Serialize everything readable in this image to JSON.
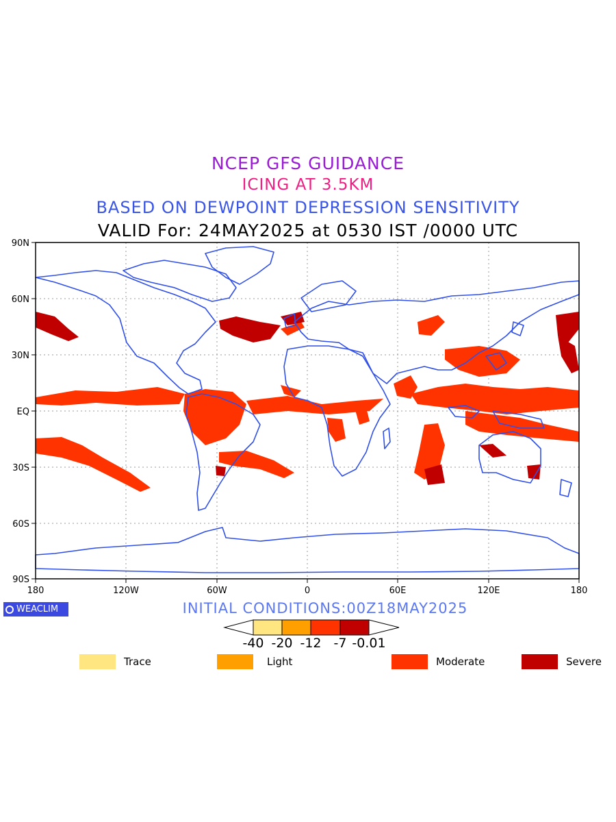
{
  "titles": {
    "line1": "NCEP GFS GUIDANCE",
    "line2": "ICING AT 3.5KM",
    "line3": "BASED ON DEWPOINT DEPRESSION SENSITIVITY",
    "line4": "VALID For: 24MAY2025 at 0530 IST /0000 UTC"
  },
  "map": {
    "lat_labels": [
      "90N",
      "60N",
      "30N",
      "EQ",
      "30S",
      "60S",
      "90S"
    ],
    "lon_labels": [
      "180",
      "120W",
      "60W",
      "0",
      "60E",
      "120E",
      "180"
    ],
    "coast_color": "#2f4fe8",
    "grid_color": "#888888"
  },
  "footer": {
    "logo_text": "WEACLIM",
    "initial_conditions": "INITIAL CONDITIONS:00Z18MAY2025"
  },
  "colorbar": {
    "tick_labels": [
      "-40",
      "-20",
      "-12",
      "-7",
      "-0.01"
    ],
    "colors": [
      "#ffe680",
      "#ffa000",
      "#ff3300",
      "#c00000"
    ]
  },
  "legend": [
    {
      "label": "Trace",
      "color": "#ffe680"
    },
    {
      "label": "Light",
      "color": "#ffa000"
    },
    {
      "label": "Moderate",
      "color": "#ff3300"
    },
    {
      "label": "Severe",
      "color": "#c00000"
    }
  ]
}
